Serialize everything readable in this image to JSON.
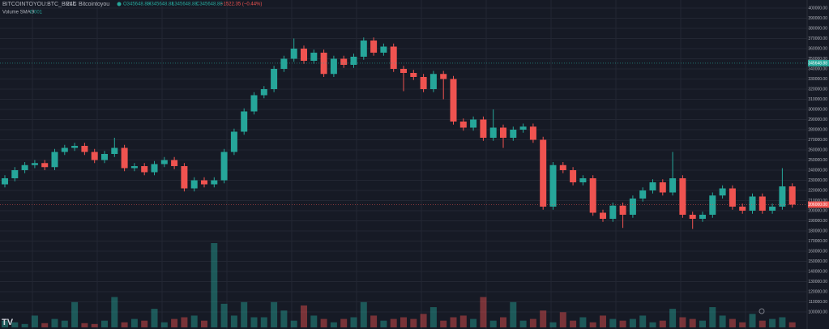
{
  "chart_data": {
    "type": "candlestick",
    "symbol": "BITCOINTOYOU:BTC_BRLC",
    "interval": "24h",
    "exchange": "Bitcointoyou",
    "ohlc_legend": [
      "O345648.88",
      "H345648.88",
      "L345648.88",
      "C345648.88"
    ],
    "change": "−1522.35 (−0.44%)",
    "volume_indicator": "Volume SMA 9",
    "volume_indicator_value": "0.001",
    "up_color": "#26a69a",
    "down_color": "#ef5350",
    "grid": true,
    "ylim": [
      88000,
      408000
    ],
    "yticks": [
      {
        "value": 400000,
        "label": "400000.00"
      },
      {
        "value": 390000,
        "label": "390000.00"
      },
      {
        "value": 380000,
        "label": "380000.00"
      },
      {
        "value": 370000,
        "label": "370000.00"
      },
      {
        "value": 360000,
        "label": "360000.00"
      },
      {
        "value": 350000,
        "label": "350000.00"
      },
      {
        "value": 340000,
        "label": "340000.00"
      },
      {
        "value": 330000,
        "label": "330000.00"
      },
      {
        "value": 320000,
        "label": "320000.00"
      },
      {
        "value": 310000,
        "label": "310000.00"
      },
      {
        "value": 300000,
        "label": "300000.00"
      },
      {
        "value": 290000,
        "label": "290000.00"
      },
      {
        "value": 280000,
        "label": "280000.00"
      },
      {
        "value": 270000,
        "label": "270000.00"
      },
      {
        "value": 260000,
        "label": "260000.00"
      },
      {
        "value": 250000,
        "label": "250000.00"
      },
      {
        "value": 240000,
        "label": "240000.00"
      },
      {
        "value": 230000,
        "label": "230000.00"
      },
      {
        "value": 220000,
        "label": "220000.00"
      },
      {
        "value": 210000,
        "label": "210000.00"
      },
      {
        "value": 200000,
        "label": "200000.00"
      },
      {
        "value": 190000,
        "label": "190000.00"
      },
      {
        "value": 180000,
        "label": "180000.00"
      },
      {
        "value": 170000,
        "label": "170000.00"
      },
      {
        "value": 160000,
        "label": "160000.00"
      },
      {
        "value": 150000,
        "label": "150000.00"
      },
      {
        "value": 140000,
        "label": "140000.00"
      },
      {
        "value": 130000,
        "label": "130000.00"
      },
      {
        "value": 120000,
        "label": "120000.00"
      },
      {
        "value": 110000,
        "label": "110000.00"
      },
      {
        "value": 100000,
        "label": "100000.00"
      }
    ],
    "price_labels": [
      {
        "value": 345648.88,
        "label": "345648.88",
        "color": "#26a69a"
      },
      {
        "value": 206000,
        "label": "206000.00",
        "color": "#ef5350"
      }
    ],
    "ohlc": {
      "open": [
        226000,
        232000,
        240000,
        245000,
        247000,
        243000,
        258000,
        262000,
        264000,
        258000,
        250000,
        256000,
        262000,
        242000,
        244000,
        238000,
        246000,
        250000,
        244000,
        222000,
        230000,
        226000,
        230000,
        258000,
        278000,
        298000,
        314000,
        320000,
        340000,
        350000,
        360000,
        348000,
        356000,
        335000,
        350000,
        344000,
        352000,
        368000,
        356000,
        362000,
        340000,
        336000,
        332000,
        320000,
        335000,
        330000,
        288000,
        282000,
        290000,
        272000,
        282000,
        272000,
        280000,
        283000,
        270000,
        204000,
        245000,
        240000,
        228000,
        232000,
        198000,
        192000,
        205000,
        196000,
        212000,
        220000,
        228000,
        218000,
        232000,
        196000,
        192000,
        196000,
        215000,
        222000,
        204000,
        200000,
        214000,
        200000,
        204000,
        224000
      ],
      "high": [
        235000,
        243000,
        248000,
        250000,
        250000,
        261000,
        265000,
        267000,
        267000,
        261000,
        259000,
        272000,
        265000,
        247000,
        247000,
        249000,
        253000,
        253000,
        247000,
        233000,
        233000,
        233000,
        261000,
        281000,
        301000,
        317000,
        323000,
        343000,
        353000,
        370000,
        363000,
        359000,
        359000,
        353000,
        353000,
        355000,
        371000,
        371000,
        365000,
        365000,
        343000,
        339000,
        335000,
        338000,
        338000,
        333000,
        291000,
        293000,
        293000,
        300000,
        285000,
        283000,
        286000,
        286000,
        273000,
        248000,
        248000,
        243000,
        235000,
        235000,
        201000,
        208000,
        208000,
        215000,
        223000,
        231000,
        231000,
        258000,
        235000,
        199000,
        199000,
        218000,
        225000,
        225000,
        207000,
        217000,
        217000,
        207000,
        242000,
        227000
      ],
      "low": [
        223000,
        229000,
        237000,
        242000,
        240000,
        240000,
        255000,
        259000,
        255000,
        247000,
        247000,
        253000,
        239000,
        239000,
        235000,
        235000,
        243000,
        241000,
        219000,
        219000,
        223000,
        223000,
        227000,
        255000,
        275000,
        295000,
        311000,
        317000,
        337000,
        347000,
        345000,
        345000,
        332000,
        332000,
        341000,
        341000,
        349000,
        353000,
        353000,
        337000,
        318000,
        329000,
        317000,
        317000,
        310000,
        285000,
        279000,
        279000,
        269000,
        269000,
        262000,
        269000,
        277000,
        267000,
        201000,
        201000,
        237000,
        225000,
        225000,
        195000,
        189000,
        189000,
        183000,
        193000,
        209000,
        217000,
        215000,
        215000,
        193000,
        182000,
        189000,
        193000,
        212000,
        201000,
        197000,
        197000,
        197000,
        197000,
        201000,
        203000
      ],
      "close": [
        232000,
        240000,
        245000,
        247000,
        243000,
        258000,
        262000,
        264000,
        258000,
        250000,
        256000,
        262000,
        242000,
        244000,
        238000,
        246000,
        250000,
        244000,
        222000,
        230000,
        226000,
        230000,
        258000,
        278000,
        298000,
        314000,
        320000,
        340000,
        350000,
        360000,
        348000,
        356000,
        335000,
        350000,
        344000,
        352000,
        368000,
        356000,
        362000,
        340000,
        336000,
        332000,
        320000,
        335000,
        330000,
        288000,
        282000,
        290000,
        272000,
        282000,
        272000,
        280000,
        283000,
        270000,
        204000,
        245000,
        240000,
        228000,
        232000,
        198000,
        192000,
        205000,
        196000,
        212000,
        220000,
        228000,
        218000,
        232000,
        196000,
        192000,
        196000,
        215000,
        222000,
        204000,
        200000,
        214000,
        200000,
        204000,
        224000,
        206000
      ]
    },
    "volume": [
      8,
      6,
      4,
      14,
      5,
      10,
      8,
      30,
      5,
      4,
      8,
      36,
      6,
      10,
      8,
      22,
      6,
      10,
      12,
      14,
      8,
      100,
      28,
      14,
      30,
      12,
      12,
      30,
      20,
      8,
      26,
      14,
      10,
      6,
      10,
      12,
      30,
      14,
      8,
      10,
      12,
      10,
      16,
      24,
      8,
      12,
      14,
      10,
      36,
      8,
      12,
      30,
      8,
      10,
      20,
      6,
      18,
      8,
      12,
      6,
      14,
      10,
      8,
      10,
      14,
      6,
      8,
      22,
      12,
      10,
      8,
      24,
      14,
      10,
      6,
      16,
      8,
      10,
      12,
      6
    ]
  }
}
